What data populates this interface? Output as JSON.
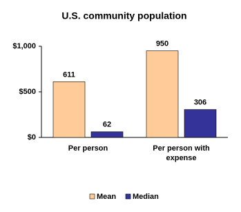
{
  "chart_data": {
    "type": "bar",
    "title": "U.S. community population",
    "categories": [
      "Per person",
      "Per person with expense"
    ],
    "series": [
      {
        "name": "Mean",
        "color": "#ffcc99",
        "values": [
          611,
          950
        ]
      },
      {
        "name": "Median",
        "color": "#333399",
        "values": [
          62,
          306
        ]
      }
    ],
    "ylim": [
      0,
      1000
    ],
    "yticks": [
      {
        "value": 0,
        "label": "$0"
      },
      {
        "value": 500,
        "label": "$500"
      },
      {
        "value": 1000,
        "label": "$1,000"
      }
    ],
    "grid": false,
    "legend": "bottom"
  }
}
